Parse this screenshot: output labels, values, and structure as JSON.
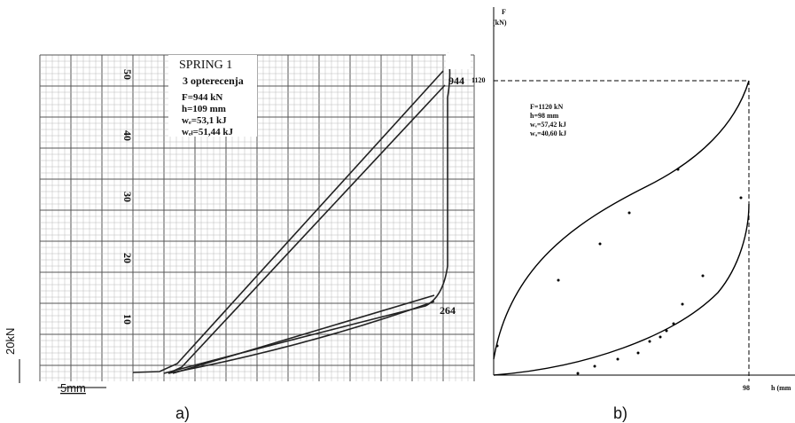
{
  "panel_a": {
    "title": "SPRING 1",
    "subtitle": "3 opterecenja",
    "notes": [
      "F=944 kN",
      "h=109 mm",
      "wₑ=53,1 kJ",
      "wₑₗ=51,44 kJ"
    ],
    "scale_ticks": [
      "50",
      "40",
      "30",
      "20",
      "10"
    ],
    "peak_label": "944",
    "low_label": "264",
    "force_scale": "20kN",
    "length_scale": "5mm",
    "caption": "a)"
  },
  "panel_b": {
    "y_label": "F",
    "y_unit": "(kN)",
    "y_mark": "1120",
    "x_mark": "98",
    "x_label": "h (mm",
    "notes": [
      "F=1120 kN",
      "h=98 mm",
      "wₑ=57,42 kJ",
      "wₐ=40,60 kJ"
    ],
    "caption": "b)"
  }
}
